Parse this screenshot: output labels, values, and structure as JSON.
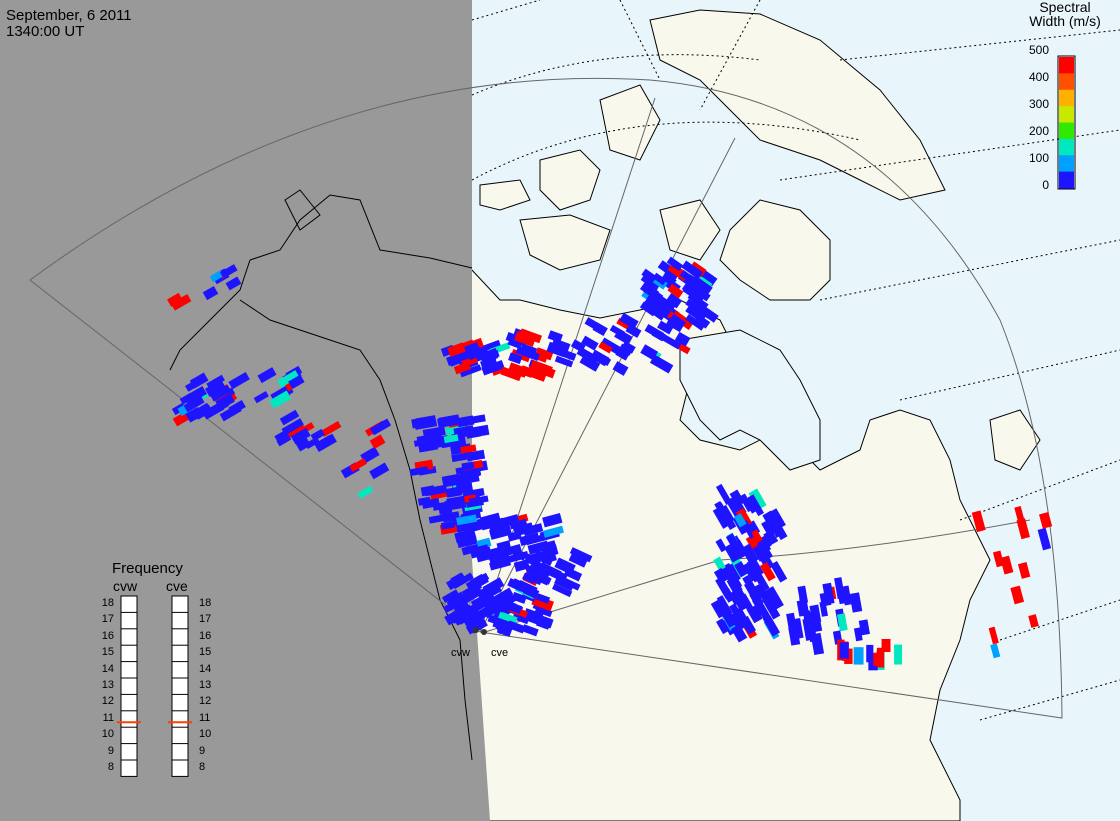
{
  "header": {
    "date": "September, 6 2011",
    "time": "1340:00 UT"
  },
  "colorbar": {
    "title_line1": "Spectral",
    "title_line2": "Width (m/s)",
    "ticks": [
      "500",
      "400",
      "300",
      "200",
      "100",
      "0"
    ],
    "range": [
      0,
      500
    ],
    "palette": [
      "#1e14ff",
      "#00a0ff",
      "#00e8c0",
      "#30e800",
      "#c8e800",
      "#ffb000",
      "#ff5000",
      "#ff0000"
    ]
  },
  "frequency_panel": {
    "title": "Frequency",
    "radars": [
      "cvw",
      "cve"
    ],
    "scale_labels": [
      "18",
      "17",
      "16",
      "15",
      "14",
      "13",
      "12",
      "11",
      "10",
      "9",
      "8"
    ],
    "scale_range": [
      8,
      18
    ],
    "current_mhz": {
      "cvw": 10.8,
      "cve": 10.8
    },
    "marker_color": "#ff4000"
  },
  "sites": [
    "cvw",
    "cve"
  ],
  "colors": {
    "night": "#999999",
    "day_ocean": "#e8f6fc",
    "land": "#f9f8ec",
    "coast": "#000000"
  }
}
